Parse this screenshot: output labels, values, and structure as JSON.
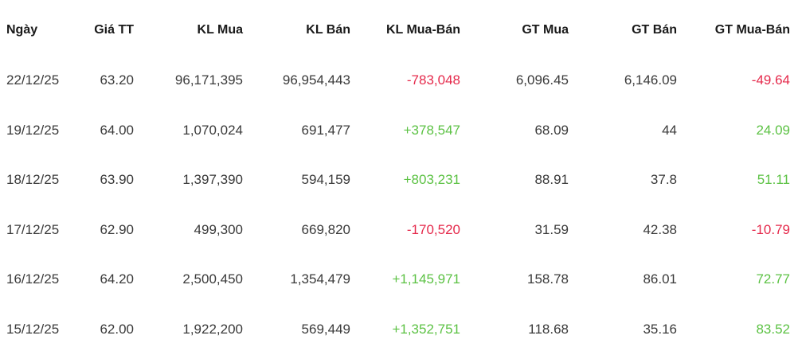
{
  "table": {
    "headers": [
      "Ngày",
      "Giá TT",
      "KL Mua",
      "KL Bán",
      "KL Mua-Bán",
      "GT Mua",
      "GT Bán",
      "GT Mua-Bán"
    ],
    "rows": [
      [
        "22/12/25",
        "63.20",
        "96,171,395",
        "96,954,443",
        "-783,048",
        "6,096.45",
        "6,146.09",
        "-49.64"
      ],
      [
        "19/12/25",
        "64.00",
        "1,070,024",
        "691,477",
        "+378,547",
        "68.09",
        "44",
        "24.09"
      ],
      [
        "18/12/25",
        "63.90",
        "1,397,390",
        "594,159",
        "+803,231",
        "88.91",
        "37.8",
        "51.11"
      ],
      [
        "17/12/25",
        "62.90",
        "499,300",
        "669,820",
        "-170,520",
        "31.59",
        "42.38",
        "-10.79"
      ],
      [
        "16/12/25",
        "64.20",
        "2,500,450",
        "1,354,479",
        "+1,145,971",
        "158.78",
        "86.01",
        "72.77"
      ],
      [
        "15/12/25",
        "62.00",
        "1,922,200",
        "569,449",
        "+1,352,751",
        "118.68",
        "35.16",
        "83.52"
      ]
    ]
  }
}
